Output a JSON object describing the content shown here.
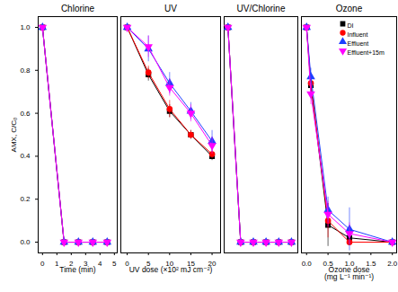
{
  "chart_data": [
    {
      "type": "line",
      "title": "Chlorine",
      "x_label": "Time (min)",
      "y_label": "AMX, C/C₀",
      "x": [
        0,
        1.5,
        2.5,
        3.5,
        4.5
      ],
      "xlim": [
        -0.3,
        5.2
      ],
      "xticks": [
        0,
        1,
        2,
        3,
        4,
        5
      ],
      "ylim": [
        -0.05,
        1.05
      ],
      "yticks": [
        {
          "value": 0,
          "label": "0.0"
        },
        {
          "value": 0.2,
          "label": "0.2"
        },
        {
          "value": 0.4,
          "label": "0.4"
        },
        {
          "value": 0.6,
          "label": "0.6"
        },
        {
          "value": 0.8,
          "label": "0.8"
        },
        {
          "value": 1,
          "label": "1.0"
        }
      ],
      "series": [
        {
          "name": "DI",
          "color": "#000000",
          "marker": "square",
          "values": [
            1,
            0,
            0,
            0,
            0
          ]
        },
        {
          "name": "Influent",
          "color": "#ff0000",
          "marker": "circle",
          "values": [
            1,
            0,
            0,
            0,
            0
          ]
        },
        {
          "name": "Effluent",
          "color": "#1f3fff",
          "marker": "triangle",
          "values": [
            1,
            0,
            0,
            0,
            0
          ]
        },
        {
          "name": "Effluent+15m",
          "color": "#ff00ff",
          "marker": "triangle-down",
          "values": [
            1,
            0,
            0,
            0,
            0
          ]
        }
      ]
    },
    {
      "type": "line",
      "title": "UV",
      "x_label": "UV dose (×10² mJ cm⁻²)",
      "tick_labels": "x",
      "x": [
        0,
        5,
        10,
        15,
        20
      ],
      "xlim": [
        -1.5,
        22
      ],
      "xticks": [
        0,
        5,
        10,
        15,
        20
      ],
      "ylim": [
        -0.05,
        1.05
      ],
      "series": [
        {
          "name": "DI",
          "color": "#000000",
          "marker": "square",
          "values": [
            1,
            0.78,
            0.61,
            0.5,
            0.4
          ],
          "errors": [
            null,
            0.03,
            0.03,
            0.02,
            0.02
          ]
        },
        {
          "name": "Influent",
          "color": "#ff0000",
          "marker": "circle",
          "values": [
            1,
            0.79,
            0.62,
            0.5,
            0.41
          ],
          "errors": [
            null,
            0.03,
            0.04,
            0.02,
            0.02
          ]
        },
        {
          "name": "Effluent",
          "color": "#1f3fff",
          "marker": "triangle",
          "values": [
            1,
            0.9,
            0.74,
            0.61,
            0.47
          ],
          "errors": [
            null,
            0.06,
            0.05,
            0.04,
            0.05
          ]
        },
        {
          "name": "Effluent+15m",
          "color": "#ff00ff",
          "marker": "triangle-down",
          "values": [
            1,
            0.91,
            0.72,
            0.6,
            0.45
          ],
          "errors": [
            null,
            0.05,
            0.04,
            0.04,
            0.04
          ]
        }
      ]
    },
    {
      "type": "line",
      "title": "UV/Chlorine",
      "tick_labels": false,
      "x": [
        0,
        1,
        2,
        3,
        4,
        5
      ],
      "xlim": [
        -0.3,
        5.5
      ],
      "ylim": [
        -0.05,
        1.05
      ],
      "series": [
        {
          "name": "DI",
          "color": "#000000",
          "marker": "square",
          "values": [
            1,
            0,
            0,
            0,
            0,
            0
          ]
        },
        {
          "name": "Influent",
          "color": "#ff0000",
          "marker": "circle",
          "values": [
            1,
            0,
            0,
            0,
            0,
            0
          ]
        },
        {
          "name": "Effluent",
          "color": "#1f3fff",
          "marker": "triangle",
          "values": [
            1,
            0,
            0,
            0,
            0,
            0
          ]
        },
        {
          "name": "Effluent+15m",
          "color": "#ff00ff",
          "marker": "triangle-down",
          "values": [
            1,
            0,
            0,
            0,
            0,
            0
          ]
        }
      ]
    },
    {
      "type": "line",
      "title": "Ozone",
      "x_label": "Ozone dose\n(mg L⁻¹ min⁻¹)",
      "tick_labels": "x",
      "legend": "upper right",
      "x": [
        0,
        0.1,
        0.5,
        1,
        2
      ],
      "xlim": [
        -0.12,
        2.1
      ],
      "xticks": [
        {
          "value": 0,
          "label": "0.0"
        },
        {
          "value": 0.5,
          "label": "0.5"
        },
        {
          "value": 1,
          "label": "1.0"
        },
        {
          "value": 1.5,
          "label": "1.5"
        },
        {
          "value": 2,
          "label": "2.0"
        }
      ],
      "ylim": [
        -0.05,
        1.05
      ],
      "series": [
        {
          "name": "DI",
          "color": "#000000",
          "marker": "square",
          "values": [
            1,
            0.73,
            0.08,
            0.02,
            0
          ],
          "errors": [
            null,
            0.03,
            0.1,
            0.02,
            null
          ]
        },
        {
          "name": "Influent",
          "color": "#ff0000",
          "marker": "circle",
          "values": [
            1,
            0.74,
            0.1,
            0,
            0
          ],
          "errors": [
            null,
            0.03,
            0.08,
            null,
            null
          ]
        },
        {
          "name": "Effluent",
          "color": "#1f3fff",
          "marker": "triangle",
          "values": [
            1,
            0.77,
            0.15,
            0.06,
            0
          ],
          "errors": [
            null,
            0.04,
            0.06,
            0.1,
            null
          ]
        },
        {
          "name": "Effluent+15m",
          "color": "#ff00ff",
          "marker": "triangle-down",
          "values": [
            1,
            0.69,
            0.13,
            0.04,
            0
          ],
          "errors": [
            null,
            0.05,
            0.06,
            0.05,
            null
          ]
        }
      ]
    }
  ]
}
